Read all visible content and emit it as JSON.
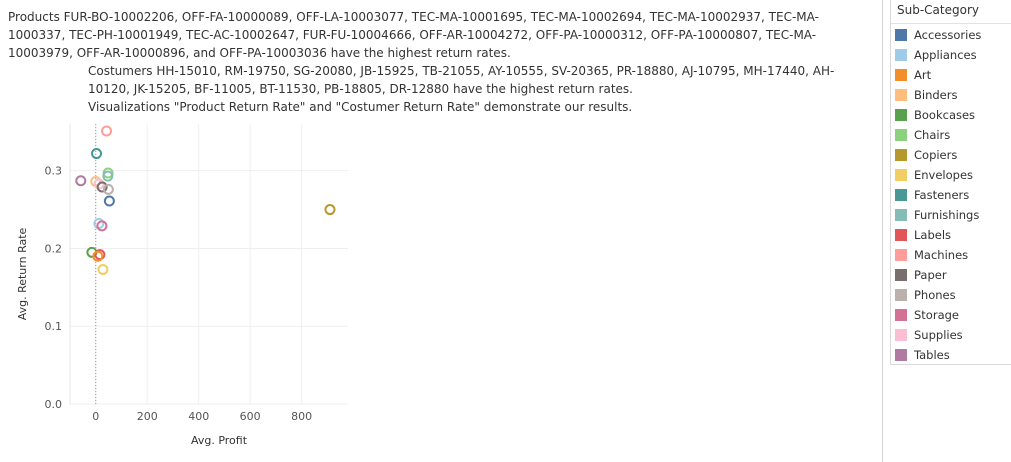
{
  "caption": {
    "line1": "Products FUR-BO-10002206, OFF-FA-10000089, OFF-LA-10003077, TEC-MA-10001695, TEC-MA-10002694, TEC-MA-10002937, TEC-MA-1000337, TEC-PH-10001949, TEC-AC-10002647, FUR-FU-10004666, OFF-AR-10004272, OFF-PA-10000312, OFF-PA-10000807, TEC-MA-10003979, OFF-AR-10000896, and OFF-PA-10003036 have the highest return rates.",
    "line2": "Costumers HH-15010, RM-19750, SG-20080, JB-15925, TB-21055, AY-10555, SV-20365, PR-18880, AJ-10795, MH-17440, AH-10120, JK-15205, BF-11005, BT-11530, PB-18805, DR-12880 have the highest return rates.",
    "line3": "Visualizations \"Product Return Rate\" and \"Costumer Return Rate\" demonstrate our results."
  },
  "legend": {
    "title": "Sub-Category",
    "items": [
      {
        "label": "Accessories",
        "color": "#4e79a7"
      },
      {
        "label": "Appliances",
        "color": "#a0cbe8"
      },
      {
        "label": "Art",
        "color": "#f28e2b"
      },
      {
        "label": "Binders",
        "color": "#ffbe7d"
      },
      {
        "label": "Bookcases",
        "color": "#59a14f"
      },
      {
        "label": "Chairs",
        "color": "#8cd17d"
      },
      {
        "label": "Copiers",
        "color": "#b6992d"
      },
      {
        "label": "Envelopes",
        "color": "#f1ce63"
      },
      {
        "label": "Fasteners",
        "color": "#499894"
      },
      {
        "label": "Furnishings",
        "color": "#86bcb6"
      },
      {
        "label": "Labels",
        "color": "#e15759"
      },
      {
        "label": "Machines",
        "color": "#ff9d9a"
      },
      {
        "label": "Paper",
        "color": "#79706e"
      },
      {
        "label": "Phones",
        "color": "#bab0ac"
      },
      {
        "label": "Storage",
        "color": "#d37295"
      },
      {
        "label": "Supplies",
        "color": "#fabfd2"
      },
      {
        "label": "Tables",
        "color": "#b07aa1"
      }
    ]
  },
  "chart_data": {
    "type": "scatter",
    "xlabel": "Avg. Profit",
    "ylabel": "Avg. Return Rate",
    "xlim": [
      -100,
      980
    ],
    "ylim": [
      0,
      0.36
    ],
    "xticks": [
      0,
      200,
      400,
      600,
      800
    ],
    "xtick_labels": [
      "0",
      "200",
      "400",
      "600",
      "800"
    ],
    "yticks": [
      0.0,
      0.1,
      0.2,
      0.3
    ],
    "ytick_labels": [
      "0.0",
      "0.1",
      "0.2",
      "0.3"
    ],
    "grid": true,
    "zero_line": true,
    "points": [
      {
        "series": "Machines",
        "x": 42,
        "y": 0.351
      },
      {
        "series": "Fasteners",
        "x": 3,
        "y": 0.322
      },
      {
        "series": "Chairs",
        "x": 48,
        "y": 0.297
      },
      {
        "series": "Furnishings",
        "x": 47,
        "y": 0.293
      },
      {
        "series": "Tables",
        "x": -58,
        "y": 0.287
      },
      {
        "series": "Binders",
        "x": 0,
        "y": 0.286
      },
      {
        "series": "Supplies",
        "x": 13,
        "y": 0.283
      },
      {
        "series": "Paper",
        "x": 25,
        "y": 0.279
      },
      {
        "series": "Phones",
        "x": 49,
        "y": 0.276
      },
      {
        "series": "Accessories",
        "x": 53,
        "y": 0.261
      },
      {
        "series": "Appliances",
        "x": 12,
        "y": 0.232
      },
      {
        "series": "Storage",
        "x": 24,
        "y": 0.229
      },
      {
        "series": "Bookcases",
        "x": -15,
        "y": 0.195
      },
      {
        "series": "Labels",
        "x": 16,
        "y": 0.192
      },
      {
        "series": "Art",
        "x": 8,
        "y": 0.19
      },
      {
        "series": "Envelopes",
        "x": 28,
        "y": 0.173
      },
      {
        "series": "Copiers",
        "x": 910,
        "y": 0.25
      }
    ]
  }
}
